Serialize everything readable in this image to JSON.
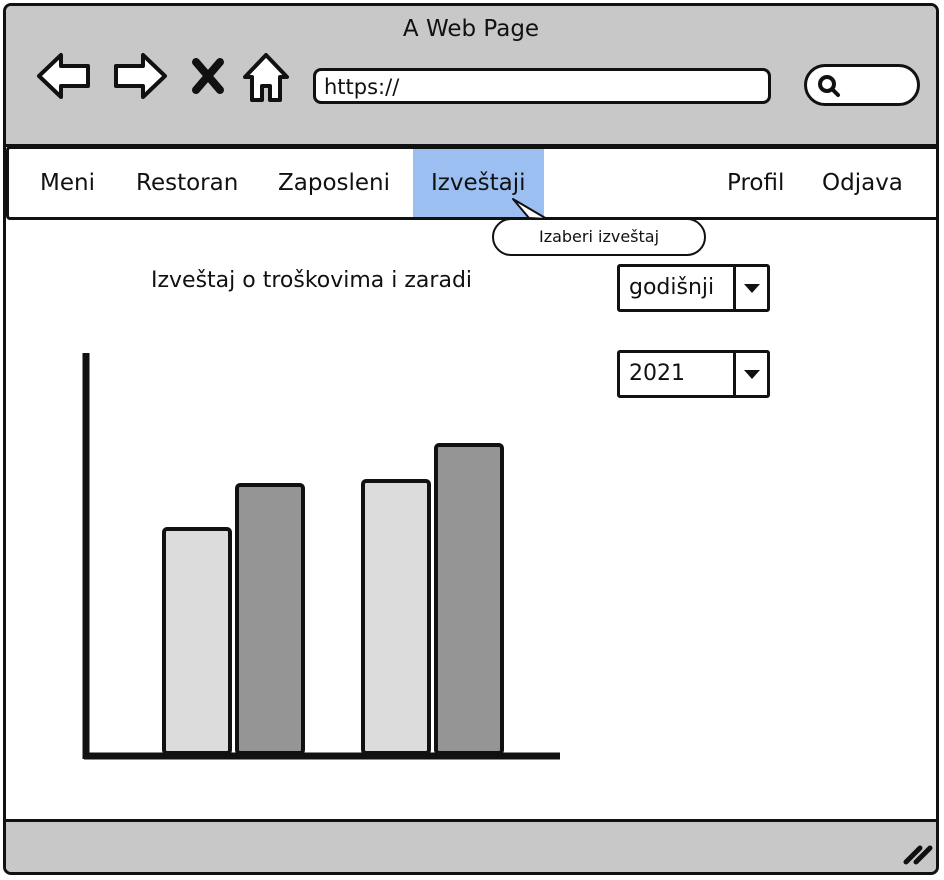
{
  "window": {
    "title": "A Web Page"
  },
  "browser": {
    "url": "https://",
    "icons": [
      "back-arrow-icon",
      "forward-arrow-icon",
      "close-icon",
      "home-icon",
      "search-icon"
    ]
  },
  "menu": {
    "left_items": [
      "Meni",
      "Restoran",
      "Zaposleni",
      "Izveštaji"
    ],
    "active_item": "Izveštaji",
    "right_items": [
      "Profil",
      "Odjava"
    ]
  },
  "tooltip": "Izaberi izveštaj",
  "report": {
    "title": "Izveštaj o troškovima i zaradi",
    "period_select": "godišnji",
    "year_select": "2021"
  },
  "chart_data": {
    "type": "bar",
    "categories": [
      "",
      ""
    ],
    "series": [
      {
        "values": [
          56,
          68
        ],
        "color": "#dcdcdc"
      },
      {
        "values": [
          67,
          77
        ],
        "color": "#959595"
      }
    ],
    "ylim": [
      0,
      100
    ],
    "xlabel": "",
    "ylabel": "",
    "title": ""
  },
  "colors": {
    "chrome": "#c8c8c8",
    "active_menu": "#9cbff2",
    "bar_light": "#dcdcdc",
    "bar_dark": "#959595"
  }
}
